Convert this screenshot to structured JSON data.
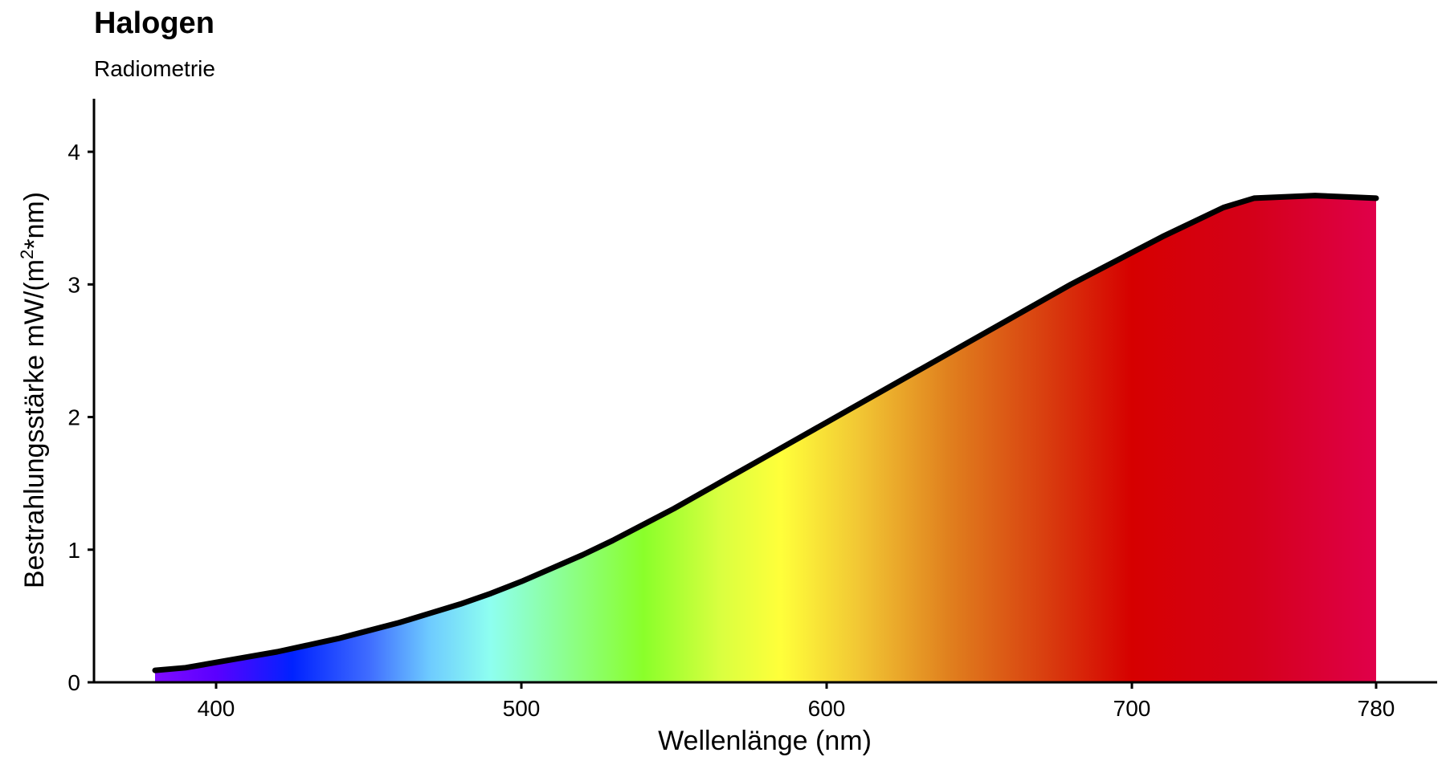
{
  "chart_data": {
    "type": "area",
    "title": "Halogen",
    "subtitle": "Radiometrie",
    "xlabel": "Wellenlänge (nm)",
    "ylabel_main": "Bestrahlungsstärke  mW/(m",
    "ylabel_sup": "2",
    "ylabel_end": "*nm)",
    "xlim": [
      360,
      800
    ],
    "ylim": [
      0,
      4.4
    ],
    "x_ticks": [
      400,
      500,
      600,
      700,
      780
    ],
    "y_ticks": [
      0,
      1,
      2,
      3,
      4
    ],
    "grid": false,
    "line_color": "#000000",
    "x": [
      380,
      390,
      400,
      410,
      420,
      430,
      440,
      450,
      460,
      470,
      480,
      490,
      500,
      510,
      520,
      530,
      540,
      550,
      560,
      570,
      580,
      590,
      600,
      610,
      620,
      630,
      640,
      650,
      660,
      670,
      680,
      690,
      700,
      710,
      720,
      730,
      740,
      750,
      760,
      770,
      780
    ],
    "y": [
      0.09,
      0.11,
      0.15,
      0.19,
      0.23,
      0.28,
      0.33,
      0.39,
      0.45,
      0.52,
      0.59,
      0.67,
      0.76,
      0.86,
      0.96,
      1.07,
      1.19,
      1.31,
      1.44,
      1.57,
      1.7,
      1.83,
      1.96,
      2.09,
      2.22,
      2.35,
      2.48,
      2.61,
      2.74,
      2.87,
      3.0,
      3.12,
      3.24,
      3.36,
      3.47,
      3.58,
      3.65,
      3.66,
      3.67,
      3.66,
      3.65
    ],
    "fill_gradient": [
      {
        "nm": 380,
        "color": "#7f0cff"
      },
      {
        "nm": 400,
        "color": "#5a00ff"
      },
      {
        "nm": 425,
        "color": "#0022ff"
      },
      {
        "nm": 450,
        "color": "#3f6cff"
      },
      {
        "nm": 470,
        "color": "#6ecbff"
      },
      {
        "nm": 490,
        "color": "#8efff0"
      },
      {
        "nm": 515,
        "color": "#8cff8c"
      },
      {
        "nm": 540,
        "color": "#8aff2a"
      },
      {
        "nm": 565,
        "color": "#d9ff40"
      },
      {
        "nm": 585,
        "color": "#ffff3a"
      },
      {
        "nm": 610,
        "color": "#f2c834"
      },
      {
        "nm": 640,
        "color": "#e0801e"
      },
      {
        "nm": 670,
        "color": "#d94210"
      },
      {
        "nm": 700,
        "color": "#d60000"
      },
      {
        "nm": 740,
        "color": "#d4001a"
      },
      {
        "nm": 780,
        "color": "#e0004a"
      }
    ]
  }
}
